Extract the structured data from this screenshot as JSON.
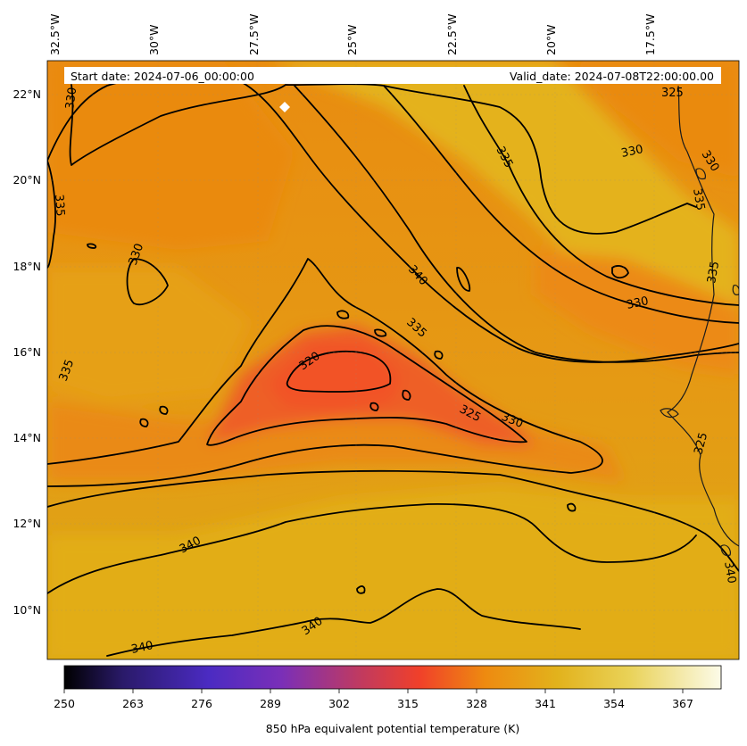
{
  "header": {
    "start_date": "Start date: 2024-07-06_00:00:00",
    "valid_date": "Valid_date: 2024-07-08T22:00:00.00"
  },
  "map": {
    "longitude_labels": [
      "32.5°W",
      "30°W",
      "27.5°W",
      "25°W",
      "22.5°W",
      "20°W",
      "17.5°W"
    ],
    "latitude_labels": [
      "22°N",
      "20°N",
      "18°N",
      "16°N",
      "14°N",
      "12°N",
      "10°N"
    ],
    "contour_labels": [
      "320",
      "325",
      "330",
      "335",
      "340"
    ],
    "field_colors": {
      "low": "#e98a0e",
      "mid": "#dd9a12",
      "high": "#e6b81e",
      "core": "#f05a28"
    }
  },
  "colorbar": {
    "ticks": [
      "250",
      "263",
      "276",
      "289",
      "302",
      "315",
      "328",
      "341",
      "354",
      "367"
    ],
    "label": "850 hPa equivalent potential temperature (K)",
    "stops": [
      "#000000",
      "#2a1a6a",
      "#4b2bc2",
      "#7a2fb8",
      "#c03a60",
      "#f0402a",
      "#ee8a10",
      "#e2b21c",
      "#e9d258",
      "#fcfbe8"
    ]
  },
  "chart_data": {
    "type": "heatmap",
    "variable": "850 hPa equivalent potential temperature (K)",
    "units": "K",
    "lon_ticks": [
      "32.5°W",
      "30°W",
      "27.5°W",
      "25°W",
      "22.5°W",
      "20°W",
      "17.5°W"
    ],
    "lat_ticks": [
      "22°N",
      "20°N",
      "18°N",
      "16°N",
      "14°N",
      "12°N",
      "10°N"
    ],
    "contour_levels": [
      320,
      325,
      330,
      335,
      340
    ],
    "colorbar_range": [
      250,
      374
    ],
    "colorbar_ticks": [
      250,
      263,
      276,
      289,
      302,
      315,
      328,
      341,
      354,
      367
    ]
  }
}
